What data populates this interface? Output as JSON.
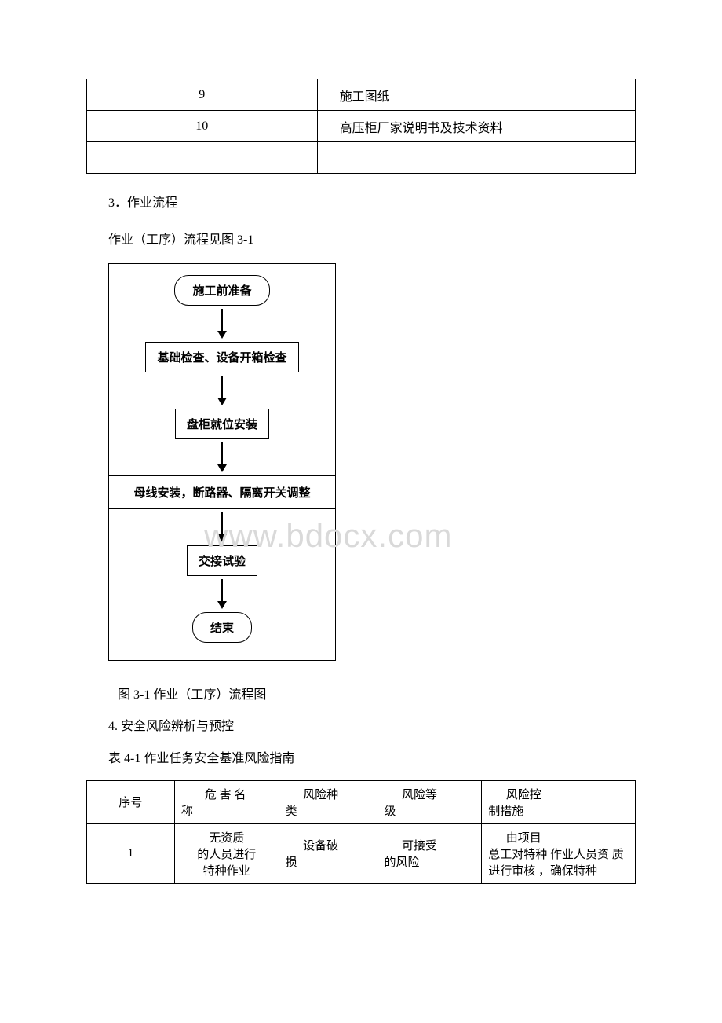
{
  "top_table": {
    "rows": [
      {
        "num": "9",
        "text": "施工图纸"
      },
      {
        "num": "10",
        "text": "高压柜厂家说明书及技术资料"
      },
      {
        "num": "",
        "text": ""
      }
    ]
  },
  "paragraphs": {
    "p3": "3．作业流程",
    "p3_sub": "作业（工序）流程见图 3-1"
  },
  "flowchart": {
    "steps": [
      "施工前准备",
      "基础检查、设备开箱检查",
      "盘柜就位安装",
      "母线安装，断路器、隔离开关调整",
      "交接试验",
      "结束"
    ]
  },
  "watermark": "www.bdocx.com",
  "caption_3_1": "图 3-1   作业（工序）流程图",
  "section4_title": "4. 安全风险辨析与预控",
  "table4_title": "表 4-1 作业任务安全基准风险指南",
  "risk_table": {
    "headers": {
      "h1": "序号",
      "h2_a": "危 害 名",
      "h2_b": "称",
      "h3_a": "风险种",
      "h3_b": "类",
      "h4_a": "风险等",
      "h4_b": "级",
      "h5_a": "风险控",
      "h5_b": "制措施"
    },
    "row1": {
      "num": "1",
      "hazard_a": "无资质",
      "hazard_b": "的人员进行",
      "hazard_c": "特种作业",
      "type_a": "设备破",
      "type_b": "损",
      "level_a": "可接受",
      "level_b": "的风险",
      "ctrl_a": "由项目",
      "ctrl_b": "总工对特种",
      "ctrl_c": "作业人员资",
      "ctrl_d": "质进行审核",
      "ctrl_e": "，确保特种"
    }
  }
}
